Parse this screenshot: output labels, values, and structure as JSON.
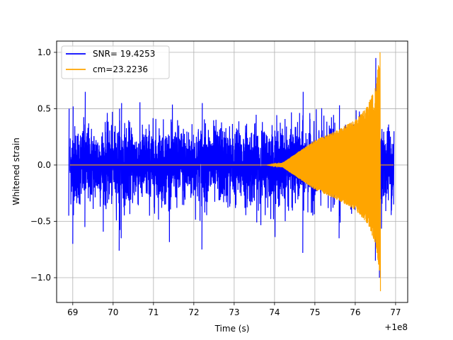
{
  "chart_data": {
    "type": "line",
    "title": "",
    "xlabel": "Time (s)",
    "ylabel": "Whitened strain",
    "x_offset_label": "+1e8",
    "xlim": [
      68.6,
      77.3
    ],
    "ylim": [
      -1.22,
      1.1
    ],
    "xticks": [
      69,
      70,
      71,
      72,
      73,
      74,
      75,
      76,
      77
    ],
    "xtick_labels": [
      "69",
      "70",
      "71",
      "72",
      "73",
      "74",
      "75",
      "76",
      "77"
    ],
    "yticks": [
      -1.0,
      -0.5,
      0.0,
      0.5,
      1.0
    ],
    "ytick_labels": [
      "−1.0",
      "−0.5",
      "0.0",
      "0.5",
      "1.0"
    ],
    "grid": true,
    "legend_position": "top-left",
    "series": [
      {
        "name": "SNR= 19.4253",
        "color": "#0000ff",
        "description_points": [
          {
            "x": 68.9,
            "ymin": -0.45,
            "ymax": 0.5
          },
          {
            "x": 69.0,
            "ymin": -0.7,
            "ymax": 0.52
          },
          {
            "x": 69.3,
            "ymin": -0.55,
            "ymax": 0.65
          },
          {
            "x": 70.2,
            "ymin": -0.65,
            "ymax": 0.55
          },
          {
            "x": 70.15,
            "ymin": -0.76,
            "ymax": 0.5
          },
          {
            "x": 72.2,
            "ymin": -0.75,
            "ymax": 0.55
          },
          {
            "x": 74.7,
            "ymin": -0.78,
            "ymax": 0.65
          },
          {
            "x": 75.6,
            "ymin": -0.65,
            "ymax": 0.53
          },
          {
            "x": 76.5,
            "ymin": -0.85,
            "ymax": 0.95
          },
          {
            "x": 76.6,
            "ymin": -1.0,
            "ymax": 0.65
          },
          {
            "x": 76.95,
            "ymin": -0.35,
            "ymax": 0.3
          }
        ],
        "x_start": 68.93,
        "x_end": 76.95
      },
      {
        "name": "cm=23.2236",
        "color": "#ffa500",
        "x_start": 68.93,
        "x_end": 76.95,
        "envelope": [
          {
            "x": 73.8,
            "amp": 0.0
          },
          {
            "x": 74.2,
            "amp": 0.02
          },
          {
            "x": 74.6,
            "amp": 0.12
          },
          {
            "x": 75.0,
            "amp": 0.22
          },
          {
            "x": 75.5,
            "amp": 0.3
          },
          {
            "x": 76.0,
            "amp": 0.4
          },
          {
            "x": 76.3,
            "amp": 0.52
          },
          {
            "x": 76.5,
            "amp": 0.7
          },
          {
            "x": 76.62,
            "amp": 1.0
          }
        ],
        "peak": {
          "x": 76.62,
          "ymax": 1.0,
          "ymin": -1.12
        }
      }
    ]
  }
}
